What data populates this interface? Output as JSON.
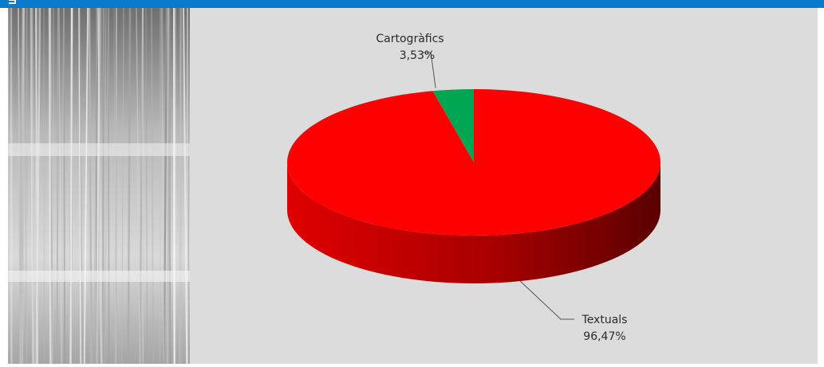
{
  "chart_data": {
    "type": "pie",
    "title": "",
    "slices": [
      {
        "label": "Textuals",
        "value": 96.47,
        "value_label": "96,47%",
        "color": "#ff0000",
        "side_color": "#c80000"
      },
      {
        "label": "Cartogràfics",
        "value": 3.53,
        "value_label": "3,53%",
        "color": "#00a651",
        "side_color": "#007a3a"
      }
    ],
    "style": "3d",
    "legend": "none"
  },
  "colors": {
    "header_bar": "#0a7acd",
    "panel_background": "#dcdcdc"
  }
}
